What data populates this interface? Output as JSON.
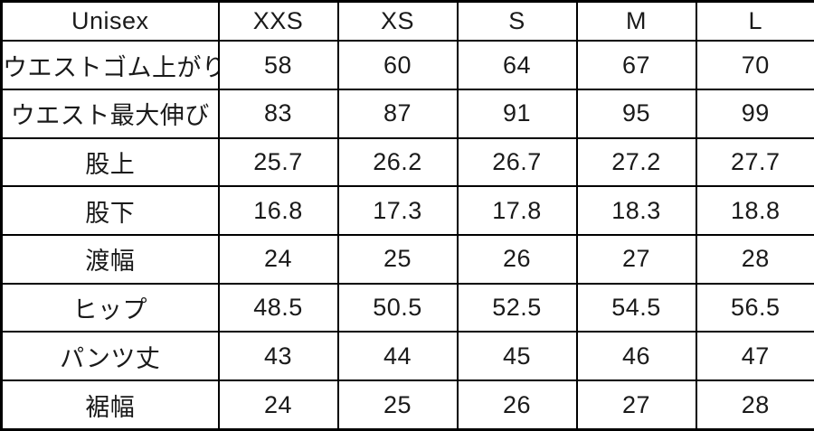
{
  "colors": {
    "background": "#ffffff",
    "border": "#000000",
    "text": "#1a1a1a"
  },
  "table": {
    "header": [
      "Unisex",
      "XXS",
      "XS",
      "S",
      "M",
      "L"
    ],
    "rows": [
      {
        "label": "ウエストゴム上がり",
        "values": [
          "58",
          "60",
          "64",
          "67",
          "70"
        ]
      },
      {
        "label": "ウエスト最大伸び",
        "values": [
          "83",
          "87",
          "91",
          "95",
          "99"
        ]
      },
      {
        "label": "股上",
        "values": [
          "25.7",
          "26.2",
          "26.7",
          "27.2",
          "27.7"
        ]
      },
      {
        "label": "股下",
        "values": [
          "16.8",
          "17.3",
          "17.8",
          "18.3",
          "18.8"
        ]
      },
      {
        "label": "渡幅",
        "values": [
          "24",
          "25",
          "26",
          "27",
          "28"
        ]
      },
      {
        "label": "ヒップ",
        "values": [
          "48.5",
          "50.5",
          "52.5",
          "54.5",
          "56.5"
        ]
      },
      {
        "label": "パンツ丈",
        "values": [
          "43",
          "44",
          "45",
          "46",
          "47"
        ]
      },
      {
        "label": "裾幅",
        "values": [
          "24",
          "25",
          "26",
          "27",
          "28"
        ]
      }
    ]
  },
  "chart_data": {
    "type": "table",
    "columns": [
      "Unisex",
      "XXS",
      "XS",
      "S",
      "M",
      "L"
    ],
    "rows": [
      [
        "ウエストゴム上がり",
        58,
        60,
        64,
        67,
        70
      ],
      [
        "ウエスト最大伸び",
        83,
        87,
        91,
        95,
        99
      ],
      [
        "股上",
        25.7,
        26.2,
        26.7,
        27.2,
        27.7
      ],
      [
        "股下",
        16.8,
        17.3,
        17.8,
        18.3,
        18.8
      ],
      [
        "渡幅",
        24,
        25,
        26,
        27,
        28
      ],
      [
        "ヒップ",
        48.5,
        50.5,
        52.5,
        54.5,
        56.5
      ],
      [
        "パンツ丈",
        43,
        44,
        45,
        46,
        47
      ],
      [
        "裾幅",
        24,
        25,
        26,
        27,
        28
      ]
    ]
  }
}
